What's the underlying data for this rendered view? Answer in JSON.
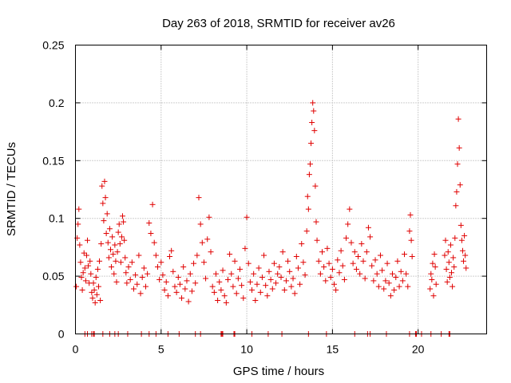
{
  "chart_data": {
    "type": "scatter",
    "title": "Day 263 of 2018, SRMTID for receiver av26",
    "xlabel": "GPS time / hours",
    "ylabel": "SRMTID / TECUs",
    "xlim": [
      0,
      24
    ],
    "ylim": [
      0,
      0.25
    ],
    "x_ticks": [
      {
        "value": 0,
        "label": "0"
      },
      {
        "value": 5,
        "label": "5"
      },
      {
        "value": 10,
        "label": "10"
      },
      {
        "value": 15,
        "label": "15"
      },
      {
        "value": 20,
        "label": "20"
      }
    ],
    "y_ticks": [
      {
        "value": 0,
        "label": "0"
      },
      {
        "value": 0.05,
        "label": "0.05"
      },
      {
        "value": 0.1,
        "label": "0.1"
      },
      {
        "value": 0.15,
        "label": "0.15"
      },
      {
        "value": 0.2,
        "label": "0.2"
      },
      {
        "value": 0.25,
        "label": "0.25"
      }
    ],
    "grid": true,
    "marker": "+",
    "series": [
      {
        "name": "SRMTID",
        "color": "#e00000",
        "points": [
          [
            0.05,
            0.041
          ],
          [
            0.1,
            0.083
          ],
          [
            0.15,
            0.095
          ],
          [
            0.2,
            0.108
          ],
          [
            0.25,
            0.077
          ],
          [
            0.3,
            0.062
          ],
          [
            0.35,
            0.049
          ],
          [
            0.4,
            0.038
          ],
          [
            0.45,
            0.053
          ],
          [
            0.5,
            0.07
          ],
          [
            0.55,
            0.057
          ],
          [
            0.6,
            0.046
          ],
          [
            0.65,
            0.068
          ],
          [
            0.7,
            0.081
          ],
          [
            0.75,
            0.059
          ],
          [
            0.8,
            0.044
          ],
          [
            0.85,
            0.063
          ],
          [
            0.9,
            0.052
          ],
          [
            0.95,
            0.036
          ],
          [
            1.0,
            0.031
          ],
          [
            1.05,
            0.044
          ],
          [
            1.1,
            0.038
          ],
          [
            1.15,
            0.027
          ],
          [
            1.2,
            0.049
          ],
          [
            1.25,
            0.034
          ],
          [
            1.3,
            0.056
          ],
          [
            1.35,
            0.041
          ],
          [
            1.4,
            0.063
          ],
          [
            1.45,
            0.029
          ],
          [
            1.5,
            0.078
          ],
          [
            1.55,
            0.128
          ],
          [
            1.6,
            0.113
          ],
          [
            1.65,
            0.098
          ],
          [
            1.7,
            0.132
          ],
          [
            1.75,
            0.118
          ],
          [
            1.8,
            0.087
          ],
          [
            1.85,
            0.104
          ],
          [
            1.9,
            0.079
          ],
          [
            1.95,
            0.066
          ],
          [
            2.0,
            0.091
          ],
          [
            2.05,
            0.073
          ],
          [
            2.1,
            0.058
          ],
          [
            2.15,
            0.084
          ],
          [
            2.2,
            0.069
          ],
          [
            2.25,
            0.052
          ],
          [
            2.3,
            0.077
          ],
          [
            2.35,
            0.063
          ],
          [
            2.4,
            0.045
          ],
          [
            2.45,
            0.071
          ],
          [
            2.5,
            0.088
          ],
          [
            2.55,
            0.095
          ],
          [
            2.6,
            0.078
          ],
          [
            2.65,
            0.062
          ],
          [
            2.7,
            0.084
          ],
          [
            2.75,
            0.102
          ],
          [
            2.8,
            0.097
          ],
          [
            2.85,
            0.081
          ],
          [
            2.9,
            0.066
          ],
          [
            2.95,
            0.053
          ],
          [
            3.0,
            0.044
          ],
          [
            3.1,
            0.058
          ],
          [
            3.2,
            0.047
          ],
          [
            3.3,
            0.062
          ],
          [
            3.4,
            0.039
          ],
          [
            3.5,
            0.051
          ],
          [
            3.6,
            0.043
          ],
          [
            3.7,
            0.068
          ],
          [
            3.8,
            0.035
          ],
          [
            3.9,
            0.049
          ],
          [
            4.0,
            0.057
          ],
          [
            4.1,
            0.041
          ],
          [
            4.2,
            0.052
          ],
          [
            4.3,
            0.096
          ],
          [
            4.4,
            0.087
          ],
          [
            4.5,
            0.112
          ],
          [
            4.6,
            0.079
          ],
          [
            4.7,
            0.068
          ],
          [
            4.8,
            0.058
          ],
          [
            4.9,
            0.047
          ],
          [
            5.0,
            0.062
          ],
          [
            5.1,
            0.051
          ],
          [
            5.2,
            0.038
          ],
          [
            5.3,
            0.045
          ],
          [
            5.4,
            0.033
          ],
          [
            5.5,
            0.067
          ],
          [
            5.6,
            0.072
          ],
          [
            5.7,
            0.054
          ],
          [
            5.8,
            0.041
          ],
          [
            5.9,
            0.036
          ],
          [
            6.0,
            0.049
          ],
          [
            6.1,
            0.043
          ],
          [
            6.2,
            0.031
          ],
          [
            6.3,
            0.058
          ],
          [
            6.4,
            0.039
          ],
          [
            6.5,
            0.046
          ],
          [
            6.6,
            0.028
          ],
          [
            6.7,
            0.052
          ],
          [
            6.8,
            0.037
          ],
          [
            6.9,
            0.061
          ],
          [
            7.0,
            0.044
          ],
          [
            7.1,
            0.068
          ],
          [
            7.2,
            0.118
          ],
          [
            7.3,
            0.095
          ],
          [
            7.4,
            0.079
          ],
          [
            7.5,
            0.062
          ],
          [
            7.6,
            0.048
          ],
          [
            7.7,
            0.082
          ],
          [
            7.8,
            0.101
          ],
          [
            7.9,
            0.071
          ],
          [
            8.0,
            0.041
          ],
          [
            8.1,
            0.036
          ],
          [
            8.2,
            0.052
          ],
          [
            8.3,
            0.029
          ],
          [
            8.4,
            0.045
          ],
          [
            8.5,
            0.038
          ],
          [
            8.6,
            0.055
          ],
          [
            8.7,
            0.033
          ],
          [
            8.8,
            0.027
          ],
          [
            8.9,
            0.047
          ],
          [
            9.0,
            0.069
          ],
          [
            9.1,
            0.052
          ],
          [
            9.2,
            0.041
          ],
          [
            9.3,
            0.063
          ],
          [
            9.4,
            0.035
          ],
          [
            9.5,
            0.048
          ],
          [
            9.6,
            0.056
          ],
          [
            9.7,
            0.042
          ],
          [
            9.8,
            0.031
          ],
          [
            9.9,
            0.074
          ],
          [
            10.0,
            0.101
          ],
          [
            10.1,
            0.061
          ],
          [
            10.2,
            0.045
          ],
          [
            10.3,
            0.038
          ],
          [
            10.4,
            0.052
          ],
          [
            10.5,
            0.029
          ],
          [
            10.6,
            0.043
          ],
          [
            10.7,
            0.057
          ],
          [
            10.8,
            0.036
          ],
          [
            10.9,
            0.049
          ],
          [
            11.0,
            0.068
          ],
          [
            11.1,
            0.042
          ],
          [
            11.2,
            0.033
          ],
          [
            11.3,
            0.054
          ],
          [
            11.4,
            0.047
          ],
          [
            11.5,
            0.039
          ],
          [
            11.6,
            0.061
          ],
          [
            11.7,
            0.044
          ],
          [
            11.8,
            0.052
          ],
          [
            11.9,
            0.058
          ],
          [
            12.0,
            0.049
          ],
          [
            12.1,
            0.071
          ],
          [
            12.2,
            0.038
          ],
          [
            12.3,
            0.046
          ],
          [
            12.4,
            0.063
          ],
          [
            12.5,
            0.054
          ],
          [
            12.6,
            0.041
          ],
          [
            12.7,
            0.048
          ],
          [
            12.8,
            0.035
          ],
          [
            12.9,
            0.067
          ],
          [
            13.0,
            0.057
          ],
          [
            13.1,
            0.043
          ],
          [
            13.2,
            0.078
          ],
          [
            13.3,
            0.062
          ],
          [
            13.4,
            0.051
          ],
          [
            13.5,
            0.089
          ],
          [
            13.55,
            0.119
          ],
          [
            13.6,
            0.108
          ],
          [
            13.65,
            0.138
          ],
          [
            13.7,
            0.147
          ],
          [
            13.75,
            0.165
          ],
          [
            13.8,
            0.183
          ],
          [
            13.85,
            0.2
          ],
          [
            13.9,
            0.193
          ],
          [
            13.95,
            0.176
          ],
          [
            14.0,
            0.128
          ],
          [
            14.05,
            0.097
          ],
          [
            14.1,
            0.081
          ],
          [
            14.2,
            0.063
          ],
          [
            14.3,
            0.052
          ],
          [
            14.4,
            0.071
          ],
          [
            14.5,
            0.058
          ],
          [
            14.6,
            0.046
          ],
          [
            14.7,
            0.074
          ],
          [
            14.8,
            0.061
          ],
          [
            14.9,
            0.049
          ],
          [
            15.0,
            0.056
          ],
          [
            15.1,
            0.043
          ],
          [
            15.2,
            0.038
          ],
          [
            15.3,
            0.064
          ],
          [
            15.4,
            0.053
          ],
          [
            15.5,
            0.072
          ],
          [
            15.6,
            0.059
          ],
          [
            15.7,
            0.047
          ],
          [
            15.8,
            0.083
          ],
          [
            15.9,
            0.095
          ],
          [
            16.0,
            0.108
          ],
          [
            16.1,
            0.079
          ],
          [
            16.2,
            0.061
          ],
          [
            16.3,
            0.071
          ],
          [
            16.4,
            0.056
          ],
          [
            16.5,
            0.067
          ],
          [
            16.6,
            0.052
          ],
          [
            16.7,
            0.078
          ],
          [
            16.8,
            0.063
          ],
          [
            16.9,
            0.048
          ],
          [
            17.0,
            0.071
          ],
          [
            17.1,
            0.092
          ],
          [
            17.2,
            0.084
          ],
          [
            17.3,
            0.059
          ],
          [
            17.4,
            0.046
          ],
          [
            17.5,
            0.064
          ],
          [
            17.6,
            0.052
          ],
          [
            17.7,
            0.041
          ],
          [
            17.8,
            0.068
          ],
          [
            17.9,
            0.055
          ],
          [
            18.0,
            0.039
          ],
          [
            18.1,
            0.046
          ],
          [
            18.2,
            0.061
          ],
          [
            18.3,
            0.044
          ],
          [
            18.4,
            0.033
          ],
          [
            18.5,
            0.052
          ],
          [
            18.6,
            0.038
          ],
          [
            18.7,
            0.049
          ],
          [
            18.8,
            0.063
          ],
          [
            18.9,
            0.041
          ],
          [
            19.0,
            0.054
          ],
          [
            19.1,
            0.046
          ],
          [
            19.2,
            0.069
          ],
          [
            19.3,
            0.052
          ],
          [
            19.4,
            0.041
          ],
          [
            19.5,
            0.089
          ],
          [
            19.55,
            0.103
          ],
          [
            19.6,
            0.081
          ],
          [
            19.65,
            0.067
          ],
          [
            20.7,
            0.039
          ],
          [
            20.75,
            0.052
          ],
          [
            20.8,
            0.047
          ],
          [
            20.85,
            0.061
          ],
          [
            20.9,
            0.033
          ],
          [
            20.95,
            0.069
          ],
          [
            21.0,
            0.058
          ],
          [
            21.05,
            0.043
          ],
          [
            21.55,
            0.068
          ],
          [
            21.6,
            0.081
          ],
          [
            21.65,
            0.056
          ],
          [
            21.7,
            0.045
          ],
          [
            21.75,
            0.071
          ],
          [
            21.8,
            0.062
          ],
          [
            21.85,
            0.049
          ],
          [
            21.9,
            0.077
          ],
          [
            21.95,
            0.053
          ],
          [
            22.0,
            0.041
          ],
          [
            22.05,
            0.066
          ],
          [
            22.1,
            0.058
          ],
          [
            22.15,
            0.083
          ],
          [
            22.2,
            0.111
          ],
          [
            22.25,
            0.123
          ],
          [
            22.3,
            0.147
          ],
          [
            22.35,
            0.186
          ],
          [
            22.4,
            0.161
          ],
          [
            22.45,
            0.129
          ],
          [
            22.5,
            0.094
          ],
          [
            22.55,
            0.081
          ],
          [
            22.6,
            0.072
          ],
          [
            22.65,
            0.063
          ],
          [
            22.7,
            0.085
          ],
          [
            22.75,
            0.068
          ],
          [
            22.8,
            0.057
          ]
        ]
      }
    ],
    "zero_points_x": [
      0.55,
      0.7,
      0.95,
      1.05,
      1.1,
      1.6,
      2.0,
      2.3,
      2.5,
      3.05,
      3.85,
      4.3,
      4.7,
      5.4,
      6.05,
      7.0,
      7.3,
      8.5,
      8.55,
      8.6,
      9.25,
      9.3,
      10.3,
      11.25,
      12.05,
      13.6,
      14.65,
      16.3,
      17.05,
      17.2,
      18.15,
      19.5,
      19.85,
      19.9,
      20.2,
      20.75,
      21.35,
      21.8,
      21.85
    ]
  }
}
